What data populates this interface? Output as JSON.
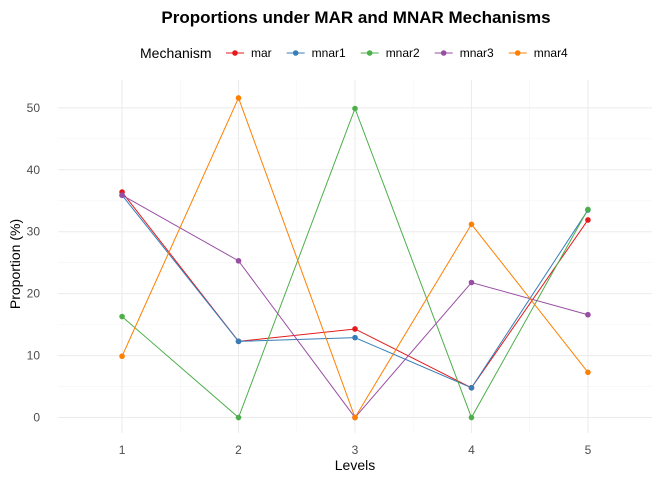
{
  "chart_data": {
    "type": "line",
    "title": "Proportions under MAR and MNAR Mechanisms",
    "xlabel": "Levels",
    "ylabel": "Proportion (%)",
    "legend_title": "Mechanism",
    "legend_position": "top",
    "grid": true,
    "x": [
      1,
      2,
      3,
      4,
      5
    ],
    "x_tick_labels": [
      "1",
      "2",
      "3",
      "4",
      "5"
    ],
    "y_ticks": [
      0,
      10,
      20,
      30,
      40,
      50
    ],
    "y_tick_labels": [
      "0",
      "10",
      "20",
      "30",
      "40",
      "50"
    ],
    "xlim": [
      0.45,
      5.55
    ],
    "ylim": [
      -2.5,
      54.5
    ],
    "series": [
      {
        "name": "mar",
        "color": "#e41a1c",
        "values": [
          36.4,
          12.3,
          14.3,
          4.8,
          31.9
        ]
      },
      {
        "name": "mnar1",
        "color": "#377eb8",
        "values": [
          35.9,
          12.3,
          12.9,
          4.8,
          33.5
        ]
      },
      {
        "name": "mnar2",
        "color": "#4daf4a",
        "values": [
          16.3,
          0.0,
          49.9,
          0.0,
          33.6
        ]
      },
      {
        "name": "mnar3",
        "color": "#984ea3",
        "values": [
          35.9,
          25.3,
          0.0,
          21.8,
          16.6
        ]
      },
      {
        "name": "mnar4",
        "color": "#ff7f00",
        "values": [
          9.9,
          51.6,
          0.0,
          31.2,
          7.3
        ]
      }
    ]
  }
}
